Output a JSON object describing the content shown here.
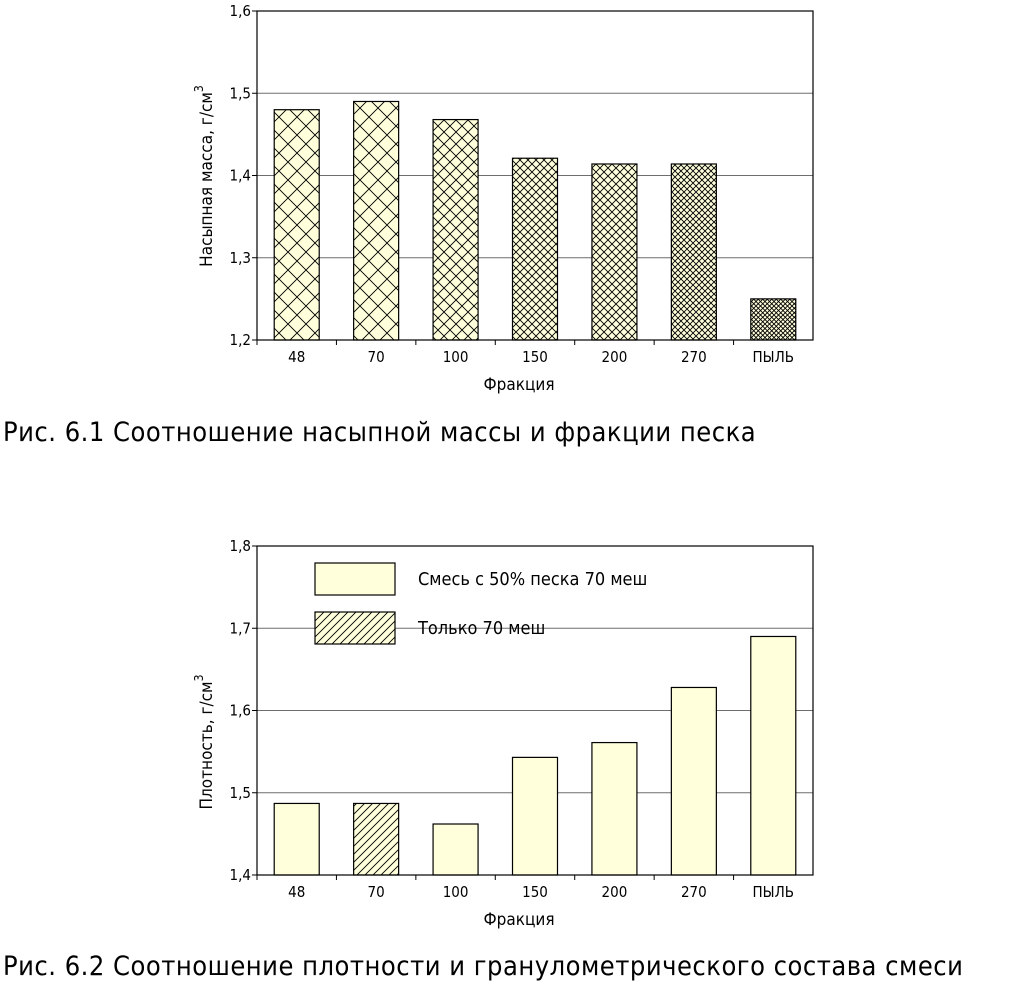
{
  "colors": {
    "bar_fill": "#ffffdc",
    "grid": "#6e6e6e",
    "outline": "#000000"
  },
  "chart_data": [
    {
      "type": "bar",
      "title": "",
      "caption": "Рис. 6.1 Соотношение насыпной массы и фракции песка",
      "xlabel": "Фракция",
      "ylabel_text": "Насыпная масса, г/см",
      "ylabel_sup": "3",
      "categories": [
        "48",
        "70",
        "100",
        "150",
        "200",
        "270",
        "ПЫЛЬ"
      ],
      "values": [
        1.48,
        1.49,
        1.468,
        1.421,
        1.414,
        1.414,
        1.25
      ],
      "patterns": [
        "xhatch-coarse",
        "xhatch-coarse",
        "xhatch-medium",
        "xhatch-fine",
        "xhatch-fine",
        "xhatch-finer",
        "xhatch-finest"
      ],
      "ylim": [
        1.2,
        1.6
      ],
      "yticks": [
        "1,2",
        "1,3",
        "1,4",
        "1,5",
        "1,6"
      ],
      "grid": true,
      "legend": null
    },
    {
      "type": "bar",
      "title": "",
      "caption": "Рис. 6.2 Соотношение плотности и гранулометрического состава смеси",
      "xlabel": "Фракция",
      "ylabel_text": "Плотность, г/см",
      "ylabel_sup": "3",
      "categories": [
        "48",
        "70",
        "100",
        "150",
        "200",
        "270",
        "ПЫЛЬ"
      ],
      "values": [
        1.487,
        1.487,
        1.462,
        1.543,
        1.561,
        1.628,
        1.69
      ],
      "patterns": [
        "solid",
        "diag",
        "solid",
        "solid",
        "solid",
        "solid",
        "solid"
      ],
      "ylim": [
        1.4,
        1.8
      ],
      "yticks": [
        "1,4",
        "1,5",
        "1,6",
        "1,7",
        "1,8"
      ],
      "grid": true,
      "legend": {
        "placement": "top-left",
        "items": [
          {
            "label": "Смесь с 50% песка 70 меш",
            "pattern": "solid"
          },
          {
            "label": "Только 70 меш",
            "pattern": "diag"
          }
        ]
      }
    }
  ]
}
